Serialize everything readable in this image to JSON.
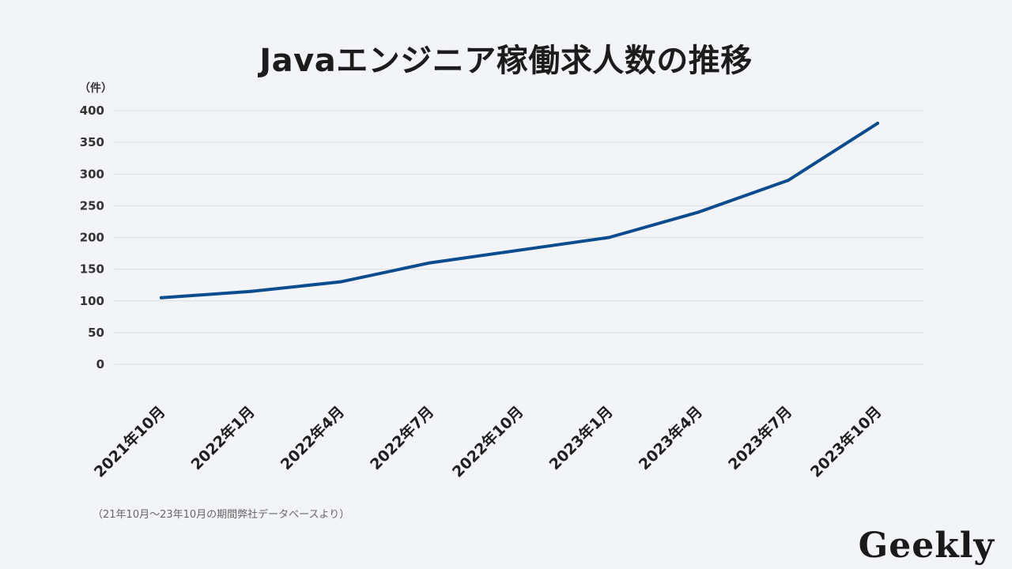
{
  "chart_data": {
    "type": "line",
    "title": "Javaエンジニア稼働求人数の推移",
    "ylabel": "（件）",
    "categories": [
      "2021年10月",
      "2022年1月",
      "2022年4月",
      "2022年7月",
      "2022年10月",
      "2023年1月",
      "2023年4月",
      "2023年7月",
      "2023年10月"
    ],
    "series": [
      {
        "values": [
          105,
          115,
          130,
          160,
          180,
          200,
          240,
          290,
          380
        ]
      }
    ],
    "ylim": [
      0,
      400
    ],
    "yticks": [
      0,
      50,
      100,
      150,
      200,
      250,
      300,
      350,
      400
    ],
    "grid": true,
    "line_color": "#0b4c8f"
  },
  "source_note": "（21年10月～23年10月の期間弊社データベースより）",
  "logo_text": "Geekly"
}
